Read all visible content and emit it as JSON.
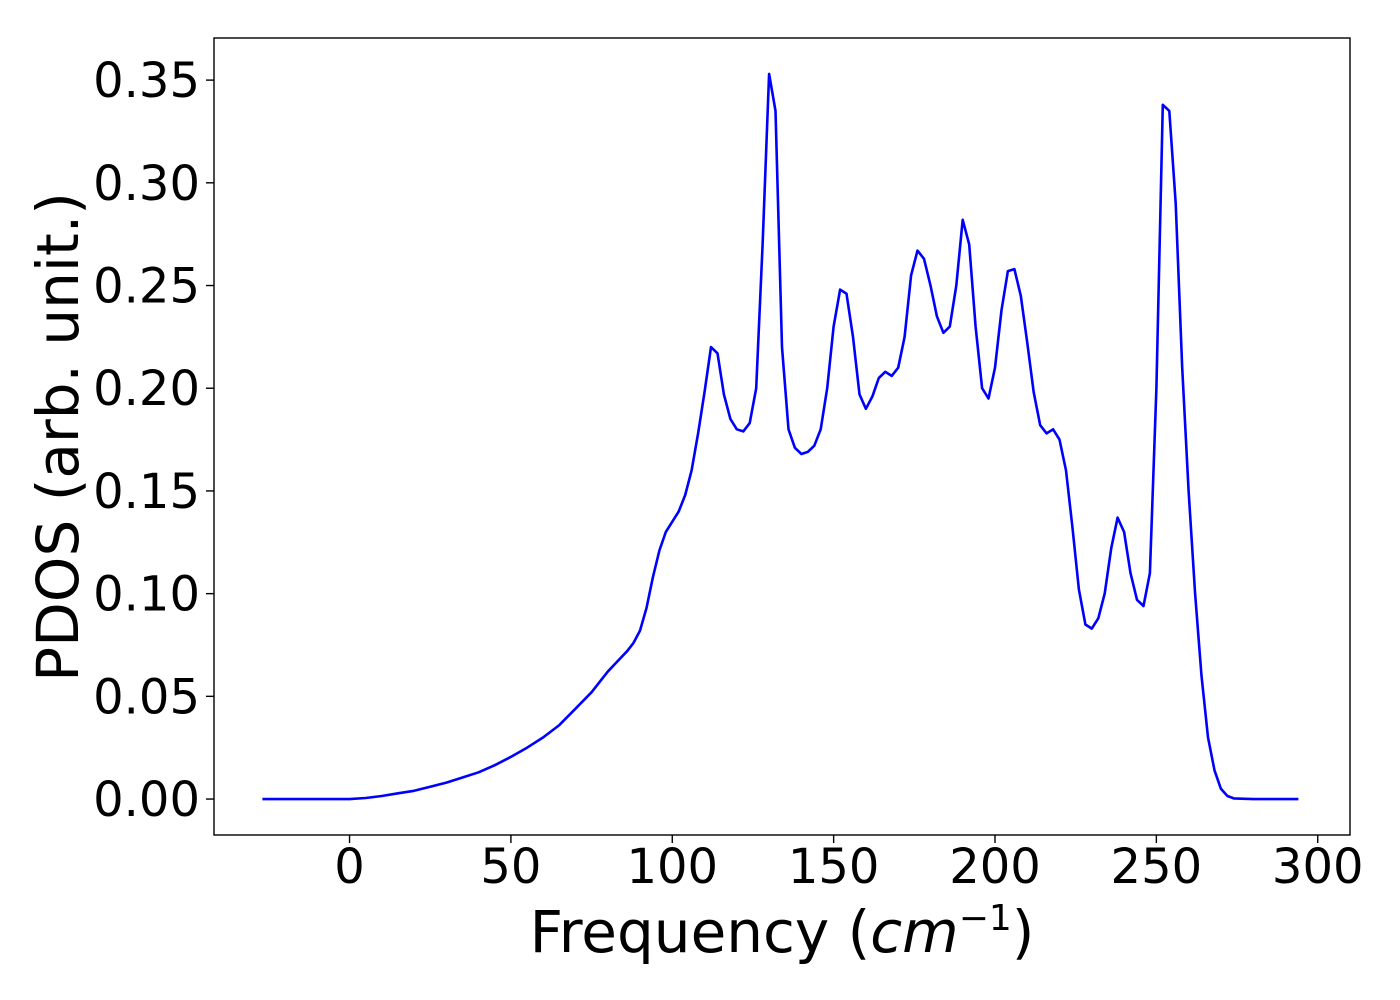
{
  "chart_data": {
    "type": "line",
    "title": "",
    "xlabel_main": "Frequency (",
    "xlabel_unit": "cm",
    "xlabel_exp": "−1",
    "xlabel_close": ")",
    "ylabel": "PDOS (arb. unit.)",
    "xlim": [
      -42,
      310
    ],
    "ylim": [
      -0.0175,
      0.3705
    ],
    "xticks": [
      0,
      50,
      100,
      150,
      200,
      250,
      300
    ],
    "xtick_labels": [
      "0",
      "50",
      "100",
      "150",
      "200",
      "250",
      "300"
    ],
    "yticks": [
      0.0,
      0.05,
      0.1,
      0.15,
      0.2,
      0.25,
      0.3,
      0.35
    ],
    "ytick_labels": [
      "0.00",
      "0.05",
      "0.10",
      "0.15",
      "0.20",
      "0.25",
      "0.30",
      "0.35"
    ],
    "grid": false,
    "series": [
      {
        "color": "#0000ff",
        "x": [
          -27,
          -10,
          0,
          5,
          10,
          15,
          20,
          25,
          30,
          35,
          40,
          45,
          50,
          55,
          60,
          65,
          70,
          75,
          80,
          83,
          86,
          88,
          90,
          92,
          94,
          96,
          98,
          100,
          102,
          104,
          106,
          108,
          110,
          112,
          114,
          116,
          118,
          120,
          122,
          124,
          126,
          128,
          130,
          132,
          134,
          136,
          138,
          140,
          142,
          144,
          146,
          148,
          150,
          152,
          154,
          156,
          158,
          160,
          162,
          164,
          166,
          168,
          170,
          172,
          174,
          176,
          178,
          180,
          182,
          184,
          186,
          188,
          190,
          192,
          194,
          196,
          198,
          200,
          202,
          204,
          206,
          208,
          210,
          212,
          214,
          216,
          218,
          220,
          222,
          224,
          226,
          228,
          230,
          232,
          234,
          236,
          238,
          240,
          242,
          244,
          246,
          248,
          250,
          252,
          254,
          256,
          258,
          260,
          262,
          264,
          266,
          268,
          270,
          272,
          274,
          280,
          294
        ],
        "y": [
          0.0,
          0.0,
          0.0,
          0.0005,
          0.0015,
          0.0028,
          0.004,
          0.006,
          0.008,
          0.0105,
          0.013,
          0.0165,
          0.0205,
          0.025,
          0.03,
          0.036,
          0.044,
          0.052,
          0.062,
          0.067,
          0.072,
          0.076,
          0.082,
          0.093,
          0.108,
          0.121,
          0.13,
          0.135,
          0.14,
          0.148,
          0.16,
          0.178,
          0.198,
          0.22,
          0.217,
          0.197,
          0.185,
          0.18,
          0.179,
          0.183,
          0.2,
          0.27,
          0.353,
          0.335,
          0.22,
          0.18,
          0.171,
          0.168,
          0.169,
          0.172,
          0.18,
          0.2,
          0.23,
          0.248,
          0.246,
          0.225,
          0.197,
          0.19,
          0.196,
          0.205,
          0.208,
          0.206,
          0.21,
          0.225,
          0.255,
          0.267,
          0.263,
          0.25,
          0.235,
          0.227,
          0.23,
          0.25,
          0.282,
          0.27,
          0.23,
          0.2,
          0.195,
          0.21,
          0.238,
          0.257,
          0.258,
          0.245,
          0.222,
          0.198,
          0.182,
          0.178,
          0.18,
          0.175,
          0.16,
          0.132,
          0.102,
          0.085,
          0.083,
          0.088,
          0.1,
          0.122,
          0.137,
          0.13,
          0.11,
          0.097,
          0.094,
          0.11,
          0.2,
          0.338,
          0.335,
          0.29,
          0.21,
          0.15,
          0.1,
          0.06,
          0.03,
          0.014,
          0.005,
          0.0015,
          0.0003,
          0.0,
          0.0
        ]
      }
    ]
  }
}
